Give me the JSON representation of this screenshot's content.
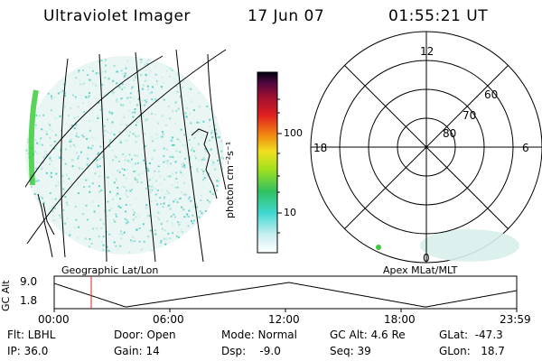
{
  "header": {
    "title": "Ultraviolet Imager",
    "date": "17 Jun 07",
    "time": "01:55:21 UT"
  },
  "colorbar": {
    "unit_label": "photon cm⁻²s⁻¹",
    "ticks": [
      "100",
      "10"
    ]
  },
  "polar_plot": {
    "mlt_labels": [
      "12",
      "18",
      "6",
      "0"
    ],
    "lat_labels": [
      "60",
      "70",
      "80"
    ]
  },
  "timeline": {
    "left_title": "Geographic Lat/Lon",
    "right_title": "Apex MLat/MLT",
    "y_axis_label": "GC Alt",
    "y_ticks": [
      "9.0",
      "1.8"
    ],
    "x_ticks": [
      "00:00",
      "06:00",
      "12:00",
      "18:00",
      "23:59"
    ],
    "current_time_marker_color": "#e02020"
  },
  "info": {
    "flt": "Flt: LBHL",
    "ip": "IP: 36.0",
    "door": "Door: Open",
    "gain": "Gain: 14",
    "mode": "Mode: Normal",
    "dsp": "Dsp:    -9.0",
    "gcalt": "GC Alt: 4.6 Re",
    "seq": "Seq: 39",
    "glat": "GLat:  -47.3",
    "glon": "GLon:   18.7"
  },
  "colors": {
    "aurora_cyan": "#8fe0d8",
    "aurora_green": "#3ccc3c",
    "background": "#ffffff"
  }
}
